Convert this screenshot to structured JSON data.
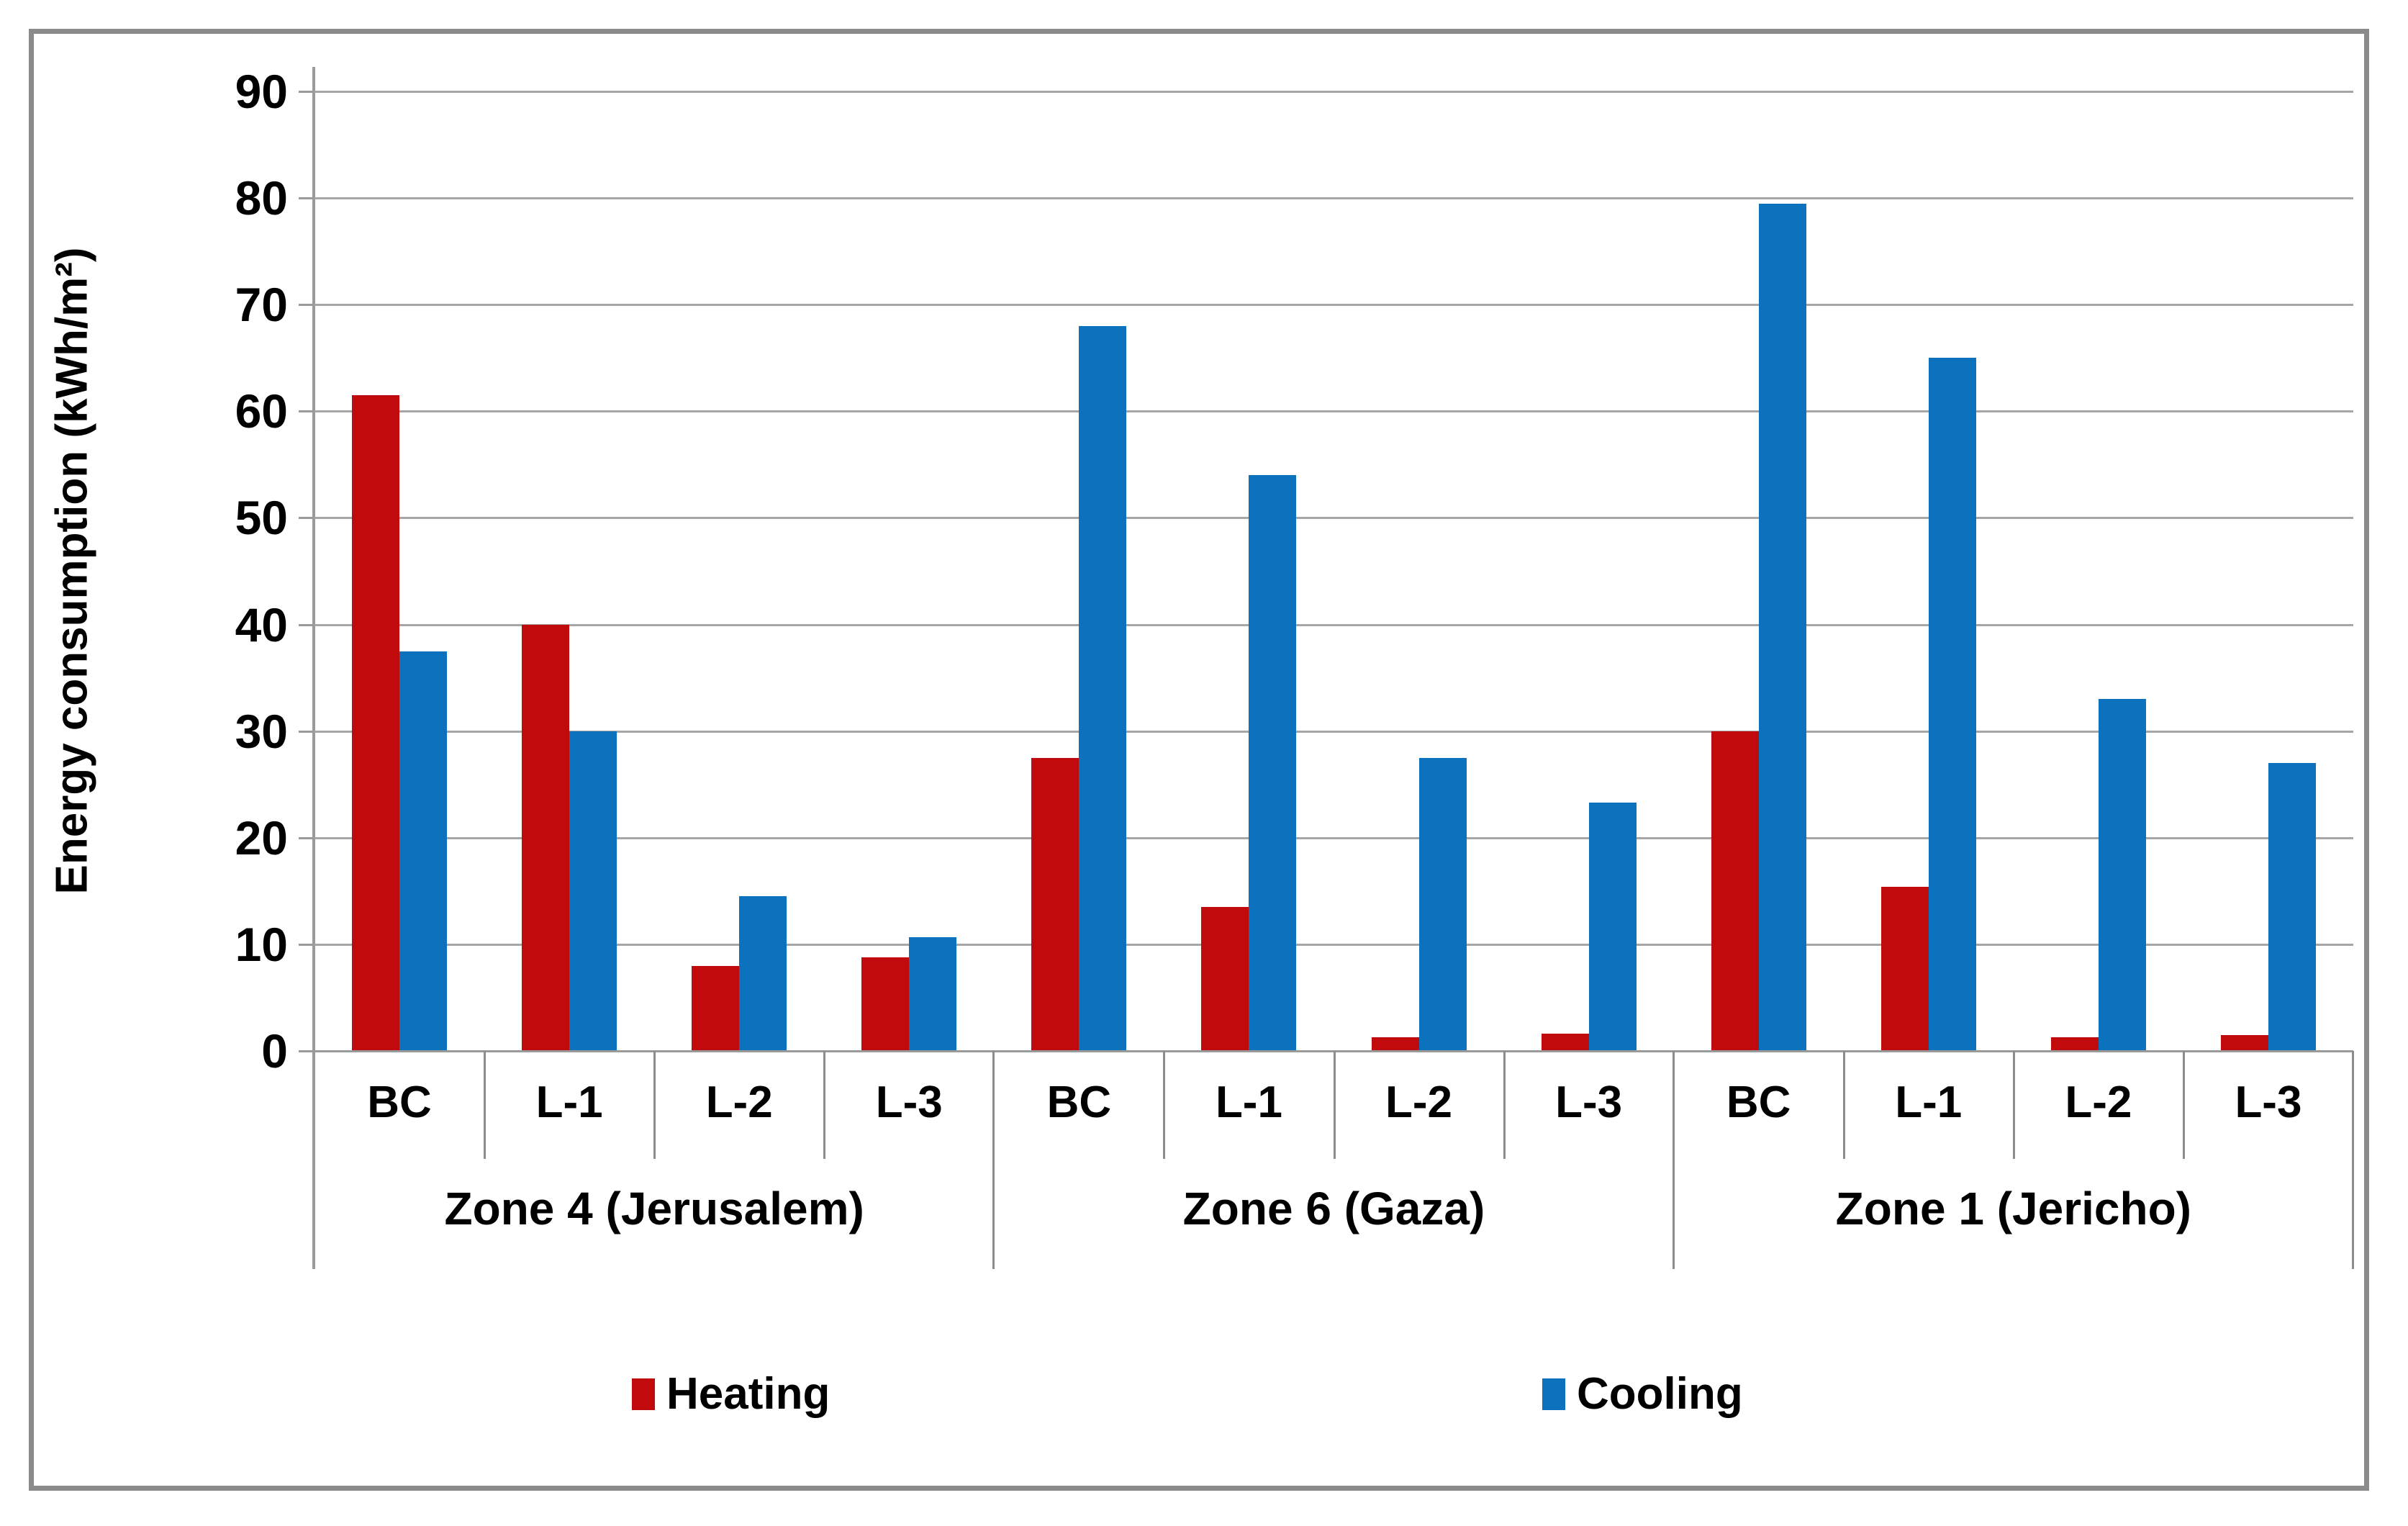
{
  "figure": {
    "background_color": "#ffffff",
    "frame_color": "#8b8b8b",
    "gridline_color": "#a6a6a6",
    "axis_color": "#9a9a9a",
    "text_color": "#000000"
  },
  "chart_data": {
    "type": "bar",
    "title": "",
    "xlabel": "",
    "ylabel": "Energy consumption (kWh/m²)",
    "ylim": [
      0,
      90
    ],
    "ytick_step": 10,
    "ytick_labels": [
      "0",
      "10",
      "20",
      "30",
      "40",
      "50",
      "60",
      "70",
      "80",
      "90"
    ],
    "grid": true,
    "legend_position": "bottom",
    "categories_per_zone": [
      "BC",
      "L-1",
      "L-2",
      "L-3"
    ],
    "zones": [
      {
        "label": "Zone 4 (Jerusalem)",
        "categories": [
          "BC",
          "L-1",
          "L-2",
          "L-3"
        ],
        "heating": [
          61.5,
          40,
          8,
          8.8
        ],
        "cooling": [
          37.5,
          30,
          14.5,
          10.7
        ]
      },
      {
        "label": "Zone 6 (Gaza)",
        "categories": [
          "BC",
          "L-1",
          "L-2",
          "L-3"
        ],
        "heating": [
          27.5,
          13.5,
          1.3,
          1.6
        ],
        "cooling": [
          68,
          54,
          27.5,
          23.3
        ]
      },
      {
        "label": "Zone 1 (Jericho)",
        "categories": [
          "BC",
          "L-1",
          "L-2",
          "L-3"
        ],
        "heating": [
          30,
          15.4,
          1.3,
          1.5
        ],
        "cooling": [
          79.5,
          65,
          33,
          27
        ]
      }
    ],
    "series": [
      {
        "name": "Heating",
        "color": "#c00a0c",
        "values": [
          61.5,
          40,
          8,
          8.8,
          27.5,
          13.5,
          1.3,
          1.6,
          30,
          15.4,
          1.3,
          1.5
        ]
      },
      {
        "name": "Cooling",
        "color": "#0d72bd",
        "values": [
          37.5,
          30,
          14.5,
          10.7,
          68,
          54,
          27.5,
          23.3,
          79.5,
          65,
          33,
          27
        ]
      }
    ]
  },
  "legend": {
    "heating_label": "Heating",
    "cooling_label": "Cooling"
  }
}
